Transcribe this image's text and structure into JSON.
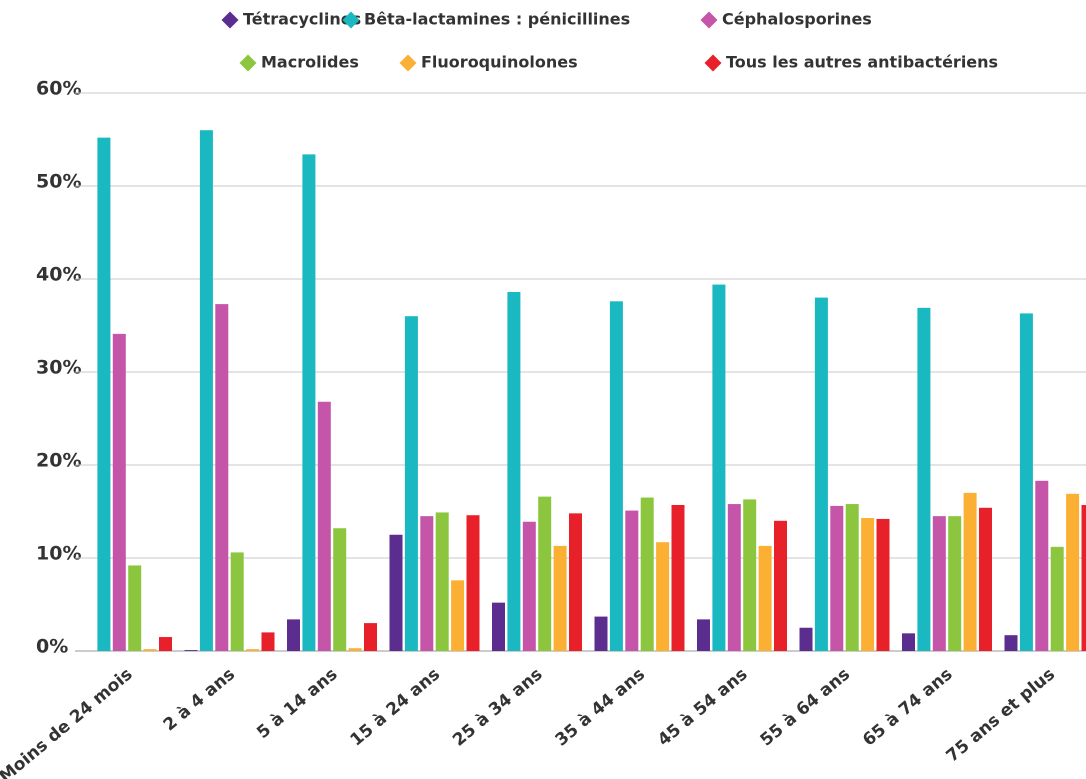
{
  "chart_data": {
    "type": "bar",
    "categories": [
      "Moins de 24 mois",
      "2 à 4 ans",
      "5 à 14 ans",
      "15 à 24 ans",
      "25 à 34 ans",
      "35 à 44 ans",
      "45 à 54 ans",
      "55 à 64 ans",
      "65 à 74 ans",
      "75 ans et plus"
    ],
    "series": [
      {
        "name": "Tétracyclines",
        "color": "#5b2d8e",
        "values": [
          0,
          0.1,
          3.4,
          12.5,
          5.2,
          3.7,
          3.4,
          2.5,
          1.9,
          1.7
        ]
      },
      {
        "name": "Bêta-lactamines : pénicillines",
        "color": "#1ab8c0",
        "values": [
          55.2,
          56.0,
          53.4,
          36.0,
          38.6,
          37.6,
          39.4,
          38.0,
          36.9,
          36.3
        ]
      },
      {
        "name": "Céphalosporines",
        "color": "#c455a8",
        "values": [
          34.1,
          37.3,
          26.8,
          14.5,
          13.9,
          15.1,
          15.8,
          15.6,
          14.5,
          18.3
        ]
      },
      {
        "name": "Macrolides",
        "color": "#8cc63f",
        "values": [
          9.2,
          10.6,
          13.2,
          14.9,
          16.6,
          16.5,
          16.3,
          15.8,
          14.5,
          11.2
        ]
      },
      {
        "name": "Fluoroquinolones",
        "color": "#fbb034",
        "values": [
          0.2,
          0.2,
          0.3,
          7.6,
          11.3,
          11.7,
          11.3,
          14.3,
          17.0,
          16.9
        ]
      },
      {
        "name": "Tous les autres antibactériens",
        "color": "#e8202a",
        "values": [
          1.5,
          2.0,
          3.0,
          14.6,
          14.8,
          15.7,
          14.0,
          14.2,
          15.4,
          15.7
        ]
      }
    ],
    "ylim": [
      0,
      60
    ],
    "yticks": [
      {
        "value": 0,
        "label": "0%"
      },
      {
        "value": 10,
        "label": "10%"
      },
      {
        "value": 20,
        "label": "20%"
      },
      {
        "value": 30,
        "label": "30%"
      },
      {
        "value": 40,
        "label": "40%"
      },
      {
        "value": 50,
        "label": "50%"
      },
      {
        "value": 60,
        "label": "60%"
      }
    ],
    "grid": true
  }
}
